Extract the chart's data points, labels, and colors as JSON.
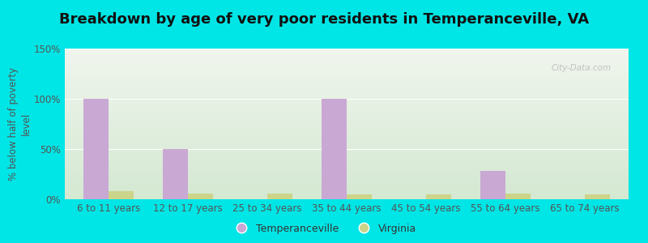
{
  "title": "Breakdown by age of very poor residents in Temperanceville, VA",
  "ylabel": "% below half of poverty\nlevel",
  "categories": [
    "6 to 11 years",
    "12 to 17 years",
    "25 to 34 years",
    "35 to 44 years",
    "45 to 54 years",
    "55 to 64 years",
    "65 to 74 years"
  ],
  "temperanceville": [
    100,
    50,
    0,
    100,
    0,
    28,
    0
  ],
  "virginia": [
    8,
    6,
    6,
    5,
    5,
    6,
    5
  ],
  "bar_color_temperanceville": "#c9a8d4",
  "bar_color_virginia": "#ccd48a",
  "background_outer": "#00e5e5",
  "background_inner_top": "#f0f4ee",
  "background_inner_bottom": "#d4e8d0",
  "ylim": [
    0,
    150
  ],
  "yticks": [
    0,
    50,
    100,
    150
  ],
  "ytick_labels": [
    "0%",
    "50%",
    "100%",
    "150%"
  ],
  "bar_width": 0.32,
  "title_fontsize": 13,
  "axis_fontsize": 8.5,
  "tick_fontsize": 8.5,
  "legend_fontsize": 9,
  "watermark": "City-Data.com"
}
